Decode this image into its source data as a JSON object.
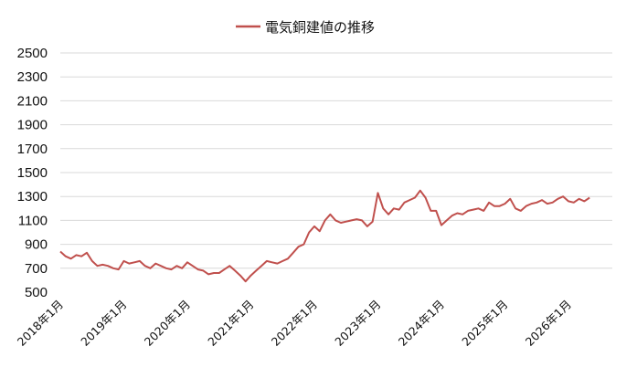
{
  "chart_data": {
    "type": "line",
    "title": "",
    "xlabel": "",
    "ylabel": "",
    "ylim": [
      500,
      2500
    ],
    "yticks": [
      500,
      700,
      900,
      1100,
      1300,
      1500,
      1700,
      1900,
      2100,
      2300,
      2500
    ],
    "grid": true,
    "legend_position": "top-center",
    "x_tick_labels": [
      "2018年1月",
      "2019年1月",
      "2020年1月",
      "2021年1月",
      "2022年1月",
      "2023年1月",
      "2024年1月",
      "2025年1月",
      "2026年1月"
    ],
    "series": [
      {
        "name": "電気銅建値の推移",
        "color": "#c0504d",
        "x": [
          "2018-01",
          "2018-02",
          "2018-03",
          "2018-04",
          "2018-05",
          "2018-06",
          "2018-07",
          "2018-08",
          "2018-09",
          "2018-10",
          "2018-11",
          "2018-12",
          "2019-01",
          "2019-02",
          "2019-03",
          "2019-04",
          "2019-05",
          "2019-06",
          "2019-07",
          "2019-08",
          "2019-09",
          "2019-10",
          "2019-11",
          "2019-12",
          "2020-01",
          "2020-02",
          "2020-03",
          "2020-04",
          "2020-05",
          "2020-06",
          "2020-07",
          "2020-08",
          "2020-09",
          "2020-10",
          "2020-11",
          "2020-12",
          "2021-01",
          "2021-02",
          "2021-03",
          "2021-04",
          "2021-05",
          "2021-06",
          "2021-07",
          "2021-08",
          "2021-09",
          "2021-10",
          "2021-11",
          "2021-12",
          "2022-01",
          "2022-02",
          "2022-03",
          "2022-04",
          "2022-05",
          "2022-06",
          "2022-07",
          "2022-08",
          "2022-09",
          "2022-10",
          "2022-11",
          "2022-12",
          "2023-01",
          "2023-02",
          "2023-03",
          "2023-04",
          "2023-05",
          "2023-06",
          "2023-07",
          "2023-08",
          "2023-09",
          "2023-10",
          "2023-11",
          "2023-12",
          "2024-01",
          "2024-02",
          "2024-03",
          "2024-04",
          "2024-05",
          "2024-06",
          "2024-07",
          "2024-08",
          "2024-09",
          "2024-10",
          "2024-11",
          "2024-12",
          "2025-01",
          "2025-02",
          "2025-03",
          "2025-04",
          "2025-05",
          "2025-06",
          "2025-07",
          "2025-08",
          "2025-09",
          "2025-10",
          "2025-11",
          "2025-12",
          "2026-01",
          "2026-02",
          "2026-03",
          "2026-04",
          "2026-05"
        ],
        "values": [
          840,
          800,
          780,
          810,
          800,
          830,
          760,
          720,
          730,
          720,
          700,
          690,
          760,
          740,
          750,
          760,
          720,
          700,
          740,
          720,
          700,
          690,
          720,
          700,
          750,
          720,
          690,
          680,
          650,
          660,
          660,
          690,
          720,
          680,
          640,
          590,
          640,
          680,
          720,
          760,
          750,
          740,
          760,
          780,
          830,
          880,
          900,
          1000,
          1050,
          1010,
          1100,
          1150,
          1100,
          1080,
          1090,
          1100,
          1110,
          1100,
          1050,
          1090,
          1330,
          1200,
          1150,
          1200,
          1190,
          1250,
          1270,
          1290,
          1350,
          1290,
          1180,
          1180,
          1060,
          1100,
          1140,
          1160,
          1150,
          1180,
          1190,
          1200,
          1180,
          1250,
          1220,
          1220,
          1240,
          1280,
          1200,
          1180,
          1220,
          1240,
          1250,
          1270,
          1240,
          1250,
          1280,
          1300,
          1260,
          1250,
          1280,
          1260,
          1290
        ]
      }
    ]
  }
}
